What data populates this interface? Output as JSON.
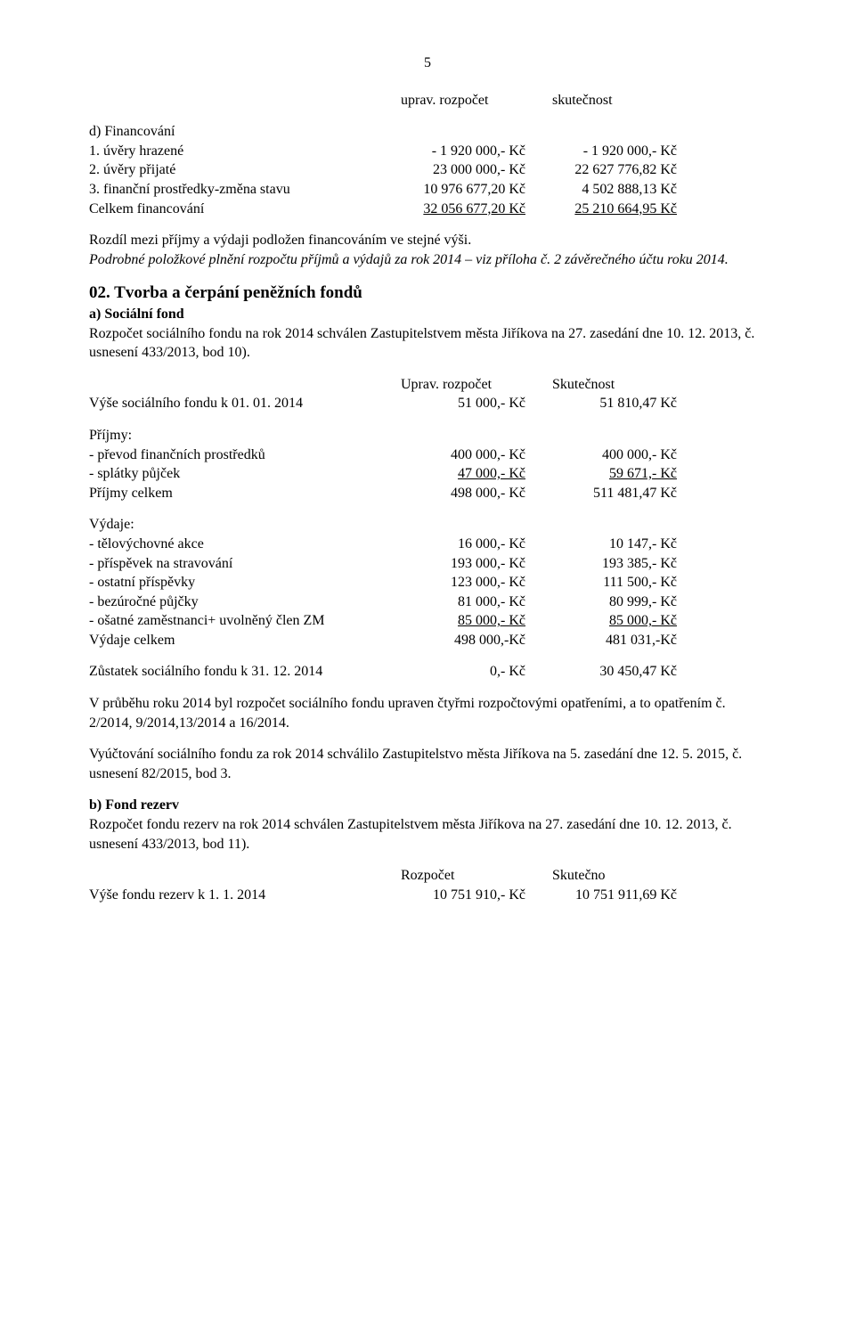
{
  "page_number": "5",
  "header": {
    "col_budget": "uprav. rozpočet",
    "col_actual": "skutečnost"
  },
  "d": {
    "title": "d) Financování",
    "rows": [
      {
        "label": "1. úvěry hrazené",
        "budget": "- 1 920 000,- Kč",
        "actual": "- 1 920 000,- Kč"
      },
      {
        "label": "2. úvěry přijaté",
        "budget": "23 000 000,- Kč",
        "actual": "22 627 776,82 Kč"
      },
      {
        "label": "3. finanční prostředky-změna stavu",
        "budget": "10 976 677,20 Kč",
        "actual": "4 502 888,13 Kč"
      },
      {
        "label": "Celkem financování",
        "budget": "32 056 677,20 Kč",
        "actual": "25 210 664,95 Kč",
        "underline": true
      }
    ],
    "note1": "Rozdíl mezi příjmy a výdaji podložen financováním ve stejné výši.",
    "note2": "Podrobné položkové plnění rozpočtu příjmů a výdajů za rok 2014 – viz příloha č. 2 závěrečného účtu roku 2014."
  },
  "s02": {
    "title": "02. Tvorba a čerpání peněžních fondů",
    "a_title": "a) Sociální fond",
    "a_intro": "Rozpočet sociálního fondu na rok 2014 schválen Zastupitelstvem města Jiříkova na 27. zasedání dne 10. 12. 2013, č. usnesení 433/2013, bod 10).",
    "a_header": {
      "budget": "Uprav. rozpočet",
      "actual": "Skutečnost"
    },
    "a_start": {
      "label": "Výše sociálního fondu k 01. 01. 2014",
      "budget": "51 000,- Kč",
      "actual": "51 810,47 Kč"
    },
    "a_income_title": "Příjmy:",
    "a_income_rows": [
      {
        "label": "- převod finančních prostředků",
        "budget": "400 000,- Kč",
        "actual": "400 000,- Kč"
      },
      {
        "label": "- splátky půjček",
        "budget": "47 000,- Kč",
        "actual": "59 671,- Kč"
      },
      {
        "label": "Příjmy celkem",
        "budget": "498 000,- Kč",
        "actual": "511 481,47 Kč"
      }
    ],
    "a_exp_title": "Výdaje:",
    "a_exp_rows": [
      {
        "label": "- tělovýchovné akce",
        "budget": "16 000,- Kč",
        "actual": "10 147,- Kč"
      },
      {
        "label": "- příspěvek na stravování",
        "budget": "193 000,- Kč",
        "actual": "193 385,- Kč"
      },
      {
        "label": "- ostatní příspěvky",
        "budget": "123 000,- Kč",
        "actual": "111 500,- Kč"
      },
      {
        "label": "- bezúročné půjčky",
        "budget": "81 000,- Kč",
        "actual": "80 999,- Kč"
      },
      {
        "label": "- ošatné zaměstnanci+ uvolněný člen ZM",
        "budget": "85 000,- Kč",
        "actual": "85 000,- Kč"
      },
      {
        "label": "Výdaje celkem",
        "budget": "498 000,-Kč",
        "actual": "481 031,-Kč"
      }
    ],
    "a_balance": {
      "label": "Zůstatek sociálního fondu k 31. 12. 2014",
      "budget": "0,- Kč",
      "actual": "30 450,47 Kč"
    },
    "a_p1": "V průběhu roku 2014 byl rozpočet sociálního fondu upraven čtyřmi rozpočtovými opatřeními, a to opatřením č. 2/2014, 9/2014,13/2014 a 16/2014.",
    "a_p2": "Vyúčtování sociálního fondu za rok 2014 schválilo Zastupitelstvo města Jiříkova na 5. zasedání dne 12. 5. 2015, č. usnesení 82/2015, bod 3.",
    "b_title": "b) Fond rezerv",
    "b_intro": "Rozpočet fondu rezerv na rok 2014 schválen Zastupitelstvem města Jiříkova na 27. zasedání dne 10. 12. 2013, č. usnesení 433/2013, bod 11).",
    "b_header": {
      "budget": "Rozpočet",
      "actual": "Skutečno"
    },
    "b_start": {
      "label": "Výše fondu rezerv k 1. 1. 2014",
      "budget": "10 751 910,- Kč",
      "actual": "10 751 911,69 Kč"
    }
  }
}
